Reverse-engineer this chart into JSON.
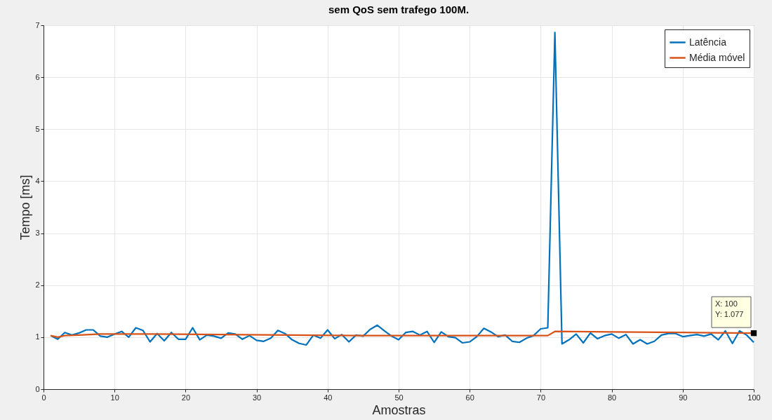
{
  "chart_data": {
    "type": "line",
    "title": "sem QoS sem trafego 100M.",
    "xlabel": "Amostras",
    "ylabel": "Tempo [ms]",
    "x": [
      1,
      2,
      3,
      4,
      5,
      6,
      7,
      8,
      9,
      10,
      11,
      12,
      13,
      14,
      15,
      16,
      17,
      18,
      19,
      20,
      21,
      22,
      23,
      24,
      25,
      26,
      27,
      28,
      29,
      30,
      31,
      32,
      33,
      34,
      35,
      36,
      37,
      38,
      39,
      40,
      41,
      42,
      43,
      44,
      45,
      46,
      47,
      48,
      49,
      50,
      51,
      52,
      53,
      54,
      55,
      56,
      57,
      58,
      59,
      60,
      61,
      62,
      63,
      64,
      65,
      66,
      67,
      68,
      69,
      70,
      71,
      72,
      73,
      74,
      75,
      76,
      77,
      78,
      79,
      80,
      81,
      82,
      83,
      84,
      85,
      86,
      87,
      88,
      89,
      90,
      91,
      92,
      93,
      94,
      95,
      96,
      97,
      98,
      99,
      100
    ],
    "series": [
      {
        "name": "Latência",
        "color": "#0072bd",
        "values": [
          1.03,
          0.96,
          1.09,
          1.04,
          1.08,
          1.14,
          1.14,
          1.02,
          1.0,
          1.06,
          1.11,
          1.0,
          1.18,
          1.13,
          0.91,
          1.07,
          0.93,
          1.09,
          0.96,
          0.96,
          1.18,
          0.95,
          1.04,
          1.02,
          0.98,
          1.08,
          1.06,
          0.96,
          1.03,
          0.94,
          0.92,
          0.98,
          1.13,
          1.07,
          0.95,
          0.88,
          0.85,
          1.04,
          0.98,
          1.14,
          0.97,
          1.05,
          0.91,
          1.04,
          1.02,
          1.15,
          1.23,
          1.12,
          1.02,
          0.95,
          1.09,
          1.11,
          1.04,
          1.11,
          0.9,
          1.1,
          1.01,
          0.99,
          0.89,
          0.91,
          1.01,
          1.17,
          1.1,
          1.01,
          1.04,
          0.92,
          0.9,
          0.98,
          1.03,
          1.16,
          1.18,
          6.86,
          0.87,
          0.95,
          1.06,
          0.89,
          1.08,
          0.97,
          1.03,
          1.06,
          0.98,
          1.05,
          0.87,
          0.95,
          0.87,
          0.92,
          1.04,
          1.07,
          1.07,
          1.01,
          1.03,
          1.05,
          1.02,
          1.06,
          0.95,
          1.12,
          0.88,
          1.12,
          1.04,
          0.9
        ]
      },
      {
        "name": "Média móvel",
        "color": "#d95319",
        "x": [
          1,
          2,
          3,
          5,
          8,
          15,
          25,
          35,
          45,
          55,
          65,
          71,
          72,
          80,
          90,
          100
        ],
        "values": [
          1.03,
          1.0,
          1.03,
          1.04,
          1.06,
          1.06,
          1.05,
          1.04,
          1.03,
          1.03,
          1.03,
          1.03,
          1.11,
          1.1,
          1.09,
          1.077
        ]
      }
    ],
    "xlim": [
      0,
      100
    ],
    "xticks": [
      0,
      10,
      20,
      30,
      40,
      50,
      60,
      70,
      80,
      90,
      100
    ],
    "ylim": [
      0,
      7
    ],
    "yticks": [
      0,
      1,
      2,
      3,
      4,
      5,
      6,
      7
    ],
    "grid": true,
    "legend": "top right",
    "line_style": "solid",
    "annotations": [
      {
        "text": "X: 100\nY: 1.077",
        "x": 100,
        "y": 1.077
      }
    ]
  }
}
